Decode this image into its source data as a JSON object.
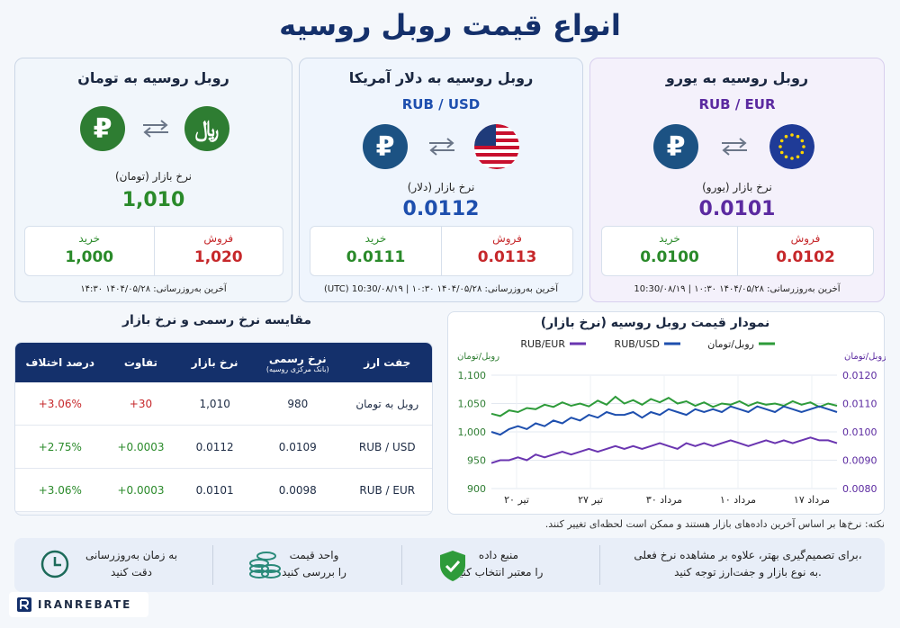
{
  "page": {
    "title": "انواع قیمت روبل روسیه"
  },
  "cards": [
    {
      "title": "روبل روسیه به یورو",
      "sub": "RUB / EUR",
      "rate_label": "نرخ بازار (یورو)",
      "rate": "0.0101",
      "sell_label": "فروش",
      "sell": "0.0102",
      "buy_label": "خرید",
      "buy": "0.0100",
      "updated": "آخرین به‌روزرسانی: ۱۴۰۴/۰۵/۲۸ ۱۰:۳۰ | 10:30/۰۸/۱۹"
    },
    {
      "title": "روبل روسیه به دلار آمریکا",
      "sub": "RUB / USD",
      "rate_label": "نرخ بازار (دلار)",
      "rate": "0.0112",
      "sell_label": "فروش",
      "sell": "0.0113",
      "buy_label": "خرید",
      "buy": "0.0111",
      "updated": "آخرین به‌روزرسانی: ۱۴۰۴/۰۵/۲۸ ۱۰:۳۰ | 10:30/۰۸/۱۹ (UTC)"
    },
    {
      "title": "روبل روسیه به تومان",
      "sub": "",
      "rate_label": "نرخ بازار (تومان)",
      "rate": "1,010",
      "sell_label": "فروش",
      "sell": "1,020",
      "buy_label": "خرید",
      "buy": "1,000",
      "updated": "آخرین به‌روزرسانی: ۱۴۰۴/۰۵/۲۸ ۱۴:۳۰"
    }
  ],
  "compare": {
    "title": "مقایسه نرخ رسمی و نرخ بازار",
    "headers": {
      "pair": "جفت ارز",
      "official": "نرخ رسمی",
      "official_sub": "(بانک مرکزی روسیه)",
      "market": "نرخ بازار",
      "diff": "تفاوت",
      "pct": "درصد اختلاف"
    },
    "rows": [
      {
        "pair": "روبل به تومان",
        "official": "980",
        "market": "1,010",
        "diff": "+30",
        "pct": "+3.06%"
      },
      {
        "pair": "RUB / USD",
        "official": "0.0109",
        "market": "0.0112",
        "diff": "+0.0003",
        "pct": "+2.75%"
      },
      {
        "pair": "RUB / EUR",
        "official": "0.0098",
        "market": "0.0101",
        "diff": "+0.0003",
        "pct": "+3.06%"
      }
    ]
  },
  "chart_title": "نمودار قیمت روبل روسیه (نرخ بازار)",
  "chart_data": {
    "type": "line",
    "title": "نمودار قیمت روبل روسیه (نرخ بازار)",
    "xlabel": "",
    "x_ticks": [
      "۲۰ تیر",
      "۲۷ تیر",
      "۳۰ مرداد",
      "۱۰ مرداد",
      "۱۷ مرداد"
    ],
    "ylabel_left": "روبل/تومان",
    "ylabel_right": "روبل/تومان",
    "left_ticks": [
      "1,100",
      "1,050",
      "1,000",
      "950",
      "900"
    ],
    "right_ticks": [
      "0.0120",
      "0.0110",
      "0.0100",
      "0.0090",
      "0.0080"
    ],
    "ylim_left": [
      900,
      1100
    ],
    "ylim_right": [
      0.008,
      0.012
    ],
    "series": [
      {
        "name": "روبل/تومان",
        "axis": "left",
        "color": "#2e9b3a",
        "values": [
          1032,
          1028,
          1038,
          1035,
          1042,
          1040,
          1048,
          1044,
          1052,
          1046,
          1050,
          1045,
          1055,
          1048,
          1062,
          1050,
          1056,
          1048,
          1058,
          1052,
          1060,
          1050,
          1054,
          1046,
          1052,
          1044,
          1050,
          1048,
          1054,
          1046,
          1052,
          1048,
          1050,
          1046,
          1054,
          1048,
          1052,
          1044,
          1050,
          1046
        ]
      },
      {
        "name": "RUB/USD",
        "axis": "right",
        "color": "#1e4fae",
        "values": [
          0.01,
          0.0099,
          0.0101,
          0.0102,
          0.0101,
          0.0103,
          0.0102,
          0.0104,
          0.0103,
          0.0105,
          0.0104,
          0.0106,
          0.0105,
          0.0107,
          0.0106,
          0.0106,
          0.0107,
          0.0105,
          0.0107,
          0.0106,
          0.0108,
          0.0107,
          0.0106,
          0.0108,
          0.0107,
          0.0108,
          0.0107,
          0.0109,
          0.0108,
          0.0107,
          0.0109,
          0.0108,
          0.0107,
          0.0109,
          0.0108,
          0.0107,
          0.0108,
          0.0109,
          0.0108,
          0.0107
        ]
      },
      {
        "name": "RUB/EUR",
        "axis": "right",
        "color": "#6a35b0",
        "values": [
          0.0089,
          0.009,
          0.009,
          0.0091,
          0.009,
          0.0092,
          0.0091,
          0.0092,
          0.0093,
          0.0092,
          0.0093,
          0.0094,
          0.0093,
          0.0094,
          0.0095,
          0.0094,
          0.0095,
          0.0094,
          0.0095,
          0.0096,
          0.0095,
          0.0094,
          0.0096,
          0.0095,
          0.0096,
          0.0095,
          0.0096,
          0.0097,
          0.0096,
          0.0095,
          0.0096,
          0.0097,
          0.0096,
          0.0097,
          0.0096,
          0.0097,
          0.0098,
          0.0097,
          0.0097,
          0.0096
        ]
      }
    ],
    "grid": true,
    "legend": "top"
  },
  "note": "نکته: نرخ‌ها بر اساس آخرین داده‌های بازار هستند و ممکن است لحظه‌ای تغییر کنند.",
  "footer": {
    "tip1": "برای تصمیم‌گیری بهتر، علاوه بر مشاهده نرخ فعلی،",
    "tip2": "به نوع بازار و جفت‌ارز توجه کنید.",
    "f1a": "منبع داده",
    "f1b": "را معتبر انتخاب کنید",
    "f2a": "واحد قیمت",
    "f2b": "را بررسی کنید",
    "f3a": "به زمان به‌روزرسانی",
    "f3b": "دقت کنید"
  },
  "logo": {
    "text": "IRANREBATE"
  },
  "colors": {
    "navy": "#14306b",
    "green": "#2a8a2a",
    "red": "#c6282b",
    "blue": "#1e4fae",
    "purple": "#5b2aa0"
  }
}
